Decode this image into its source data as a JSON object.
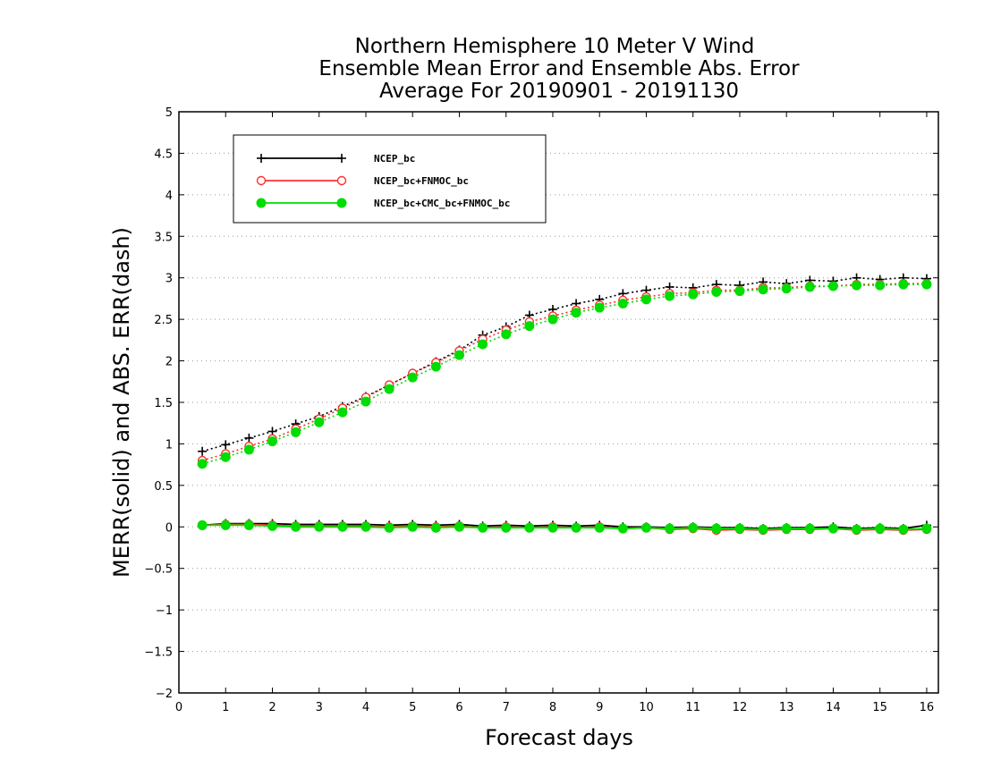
{
  "chart_data": {
    "type": "line",
    "title_lines": [
      "Northern Hemisphere 10 Meter V Wind",
      "Ensemble Mean Error and Ensemble Abs. Error",
      "Average For 20190901 - 20191130"
    ],
    "xlabel": "Forecast days",
    "ylabel": "MERR(solid) and ABS. ERR(dash)",
    "xlim": [
      0,
      16.25
    ],
    "ylim": [
      -2,
      5
    ],
    "xticks": [
      0,
      1,
      2,
      3,
      4,
      5,
      6,
      7,
      8,
      9,
      10,
      11,
      12,
      13,
      14,
      15,
      16
    ],
    "xtick_labels": [
      "0",
      "1",
      "2",
      "3",
      "4",
      "5",
      "6",
      "7",
      "8",
      "9",
      "10",
      "11",
      "12",
      "13",
      "14",
      "15",
      "16"
    ],
    "yticks": [
      -2,
      -1.5,
      -1,
      -0.5,
      0,
      0.5,
      1,
      1.5,
      2,
      2.5,
      3,
      3.5,
      4,
      4.5,
      5
    ],
    "ytick_labels": [
      "−2",
      "−1.5",
      "−1",
      "−0.5",
      "0",
      "0.5",
      "1",
      "1.5",
      "2",
      "2.5",
      "3",
      "3.5",
      "4",
      "4.5",
      "5"
    ],
    "grid": true,
    "legend_position": "top-left",
    "x": [
      0.5,
      1,
      1.5,
      2,
      2.5,
      3,
      3.5,
      4,
      4.5,
      5,
      5.5,
      6,
      6.5,
      7,
      7.5,
      8,
      8.5,
      9,
      9.5,
      10,
      10.5,
      11,
      11.5,
      12,
      12.5,
      13,
      13.5,
      14,
      14.5,
      15,
      15.5,
      16
    ],
    "series": [
      {
        "name": "NCEP_bc",
        "color": "#000000",
        "marker": "plus",
        "merr": [
          0.02,
          0.04,
          0.04,
          0.04,
          0.03,
          0.03,
          0.03,
          0.03,
          0.02,
          0.03,
          0.02,
          0.03,
          0.01,
          0.02,
          0.01,
          0.02,
          0.01,
          0.02,
          0.0,
          0.0,
          -0.01,
          0.0,
          -0.01,
          -0.01,
          -0.02,
          -0.01,
          -0.01,
          0.0,
          -0.02,
          -0.01,
          -0.02,
          0.02
        ],
        "abs_err": [
          0.91,
          0.99,
          1.07,
          1.15,
          1.24,
          1.33,
          1.45,
          1.57,
          1.71,
          1.85,
          1.99,
          2.13,
          2.31,
          2.41,
          2.55,
          2.62,
          2.69,
          2.74,
          2.81,
          2.85,
          2.89,
          2.88,
          2.92,
          2.91,
          2.95,
          2.93,
          2.97,
          2.96,
          3.0,
          2.98,
          3.0,
          2.99
        ]
      },
      {
        "name": "NCEP_bc+FNMOC_bc",
        "color": "#ff3030",
        "marker": "open-circle",
        "merr": [
          0.02,
          0.03,
          0.03,
          0.02,
          0.01,
          0.01,
          0.01,
          0.01,
          0.0,
          0.01,
          0.0,
          0.01,
          -0.01,
          0.0,
          -0.01,
          0.0,
          -0.01,
          0.0,
          -0.02,
          -0.01,
          -0.03,
          -0.02,
          -0.04,
          -0.03,
          -0.04,
          -0.03,
          -0.03,
          -0.02,
          -0.04,
          -0.03,
          -0.04,
          -0.03
        ],
        "abs_err": [
          0.8,
          0.88,
          0.97,
          1.06,
          1.18,
          1.3,
          1.43,
          1.56,
          1.71,
          1.85,
          1.98,
          2.12,
          2.26,
          2.37,
          2.47,
          2.54,
          2.61,
          2.67,
          2.73,
          2.77,
          2.81,
          2.82,
          2.85,
          2.85,
          2.88,
          2.88,
          2.9,
          2.9,
          2.92,
          2.92,
          2.93,
          2.93
        ]
      },
      {
        "name": "NCEP_bc+CMC_bc+FNMOC_bc",
        "color": "#00dd00",
        "marker": "filled-circle",
        "merr": [
          0.02,
          0.02,
          0.02,
          0.01,
          0.0,
          0.0,
          0.0,
          0.0,
          -0.01,
          0.0,
          -0.01,
          0.0,
          -0.01,
          -0.01,
          -0.01,
          -0.01,
          -0.01,
          -0.01,
          -0.02,
          -0.01,
          -0.02,
          -0.01,
          -0.02,
          -0.02,
          -0.03,
          -0.02,
          -0.02,
          -0.02,
          -0.03,
          -0.02,
          -0.03,
          -0.02
        ],
        "abs_err": [
          0.76,
          0.84,
          0.93,
          1.03,
          1.14,
          1.26,
          1.38,
          1.51,
          1.66,
          1.8,
          1.93,
          2.07,
          2.2,
          2.32,
          2.42,
          2.5,
          2.58,
          2.64,
          2.69,
          2.74,
          2.78,
          2.8,
          2.83,
          2.84,
          2.86,
          2.87,
          2.89,
          2.9,
          2.91,
          2.91,
          2.92,
          2.92
        ]
      }
    ]
  }
}
